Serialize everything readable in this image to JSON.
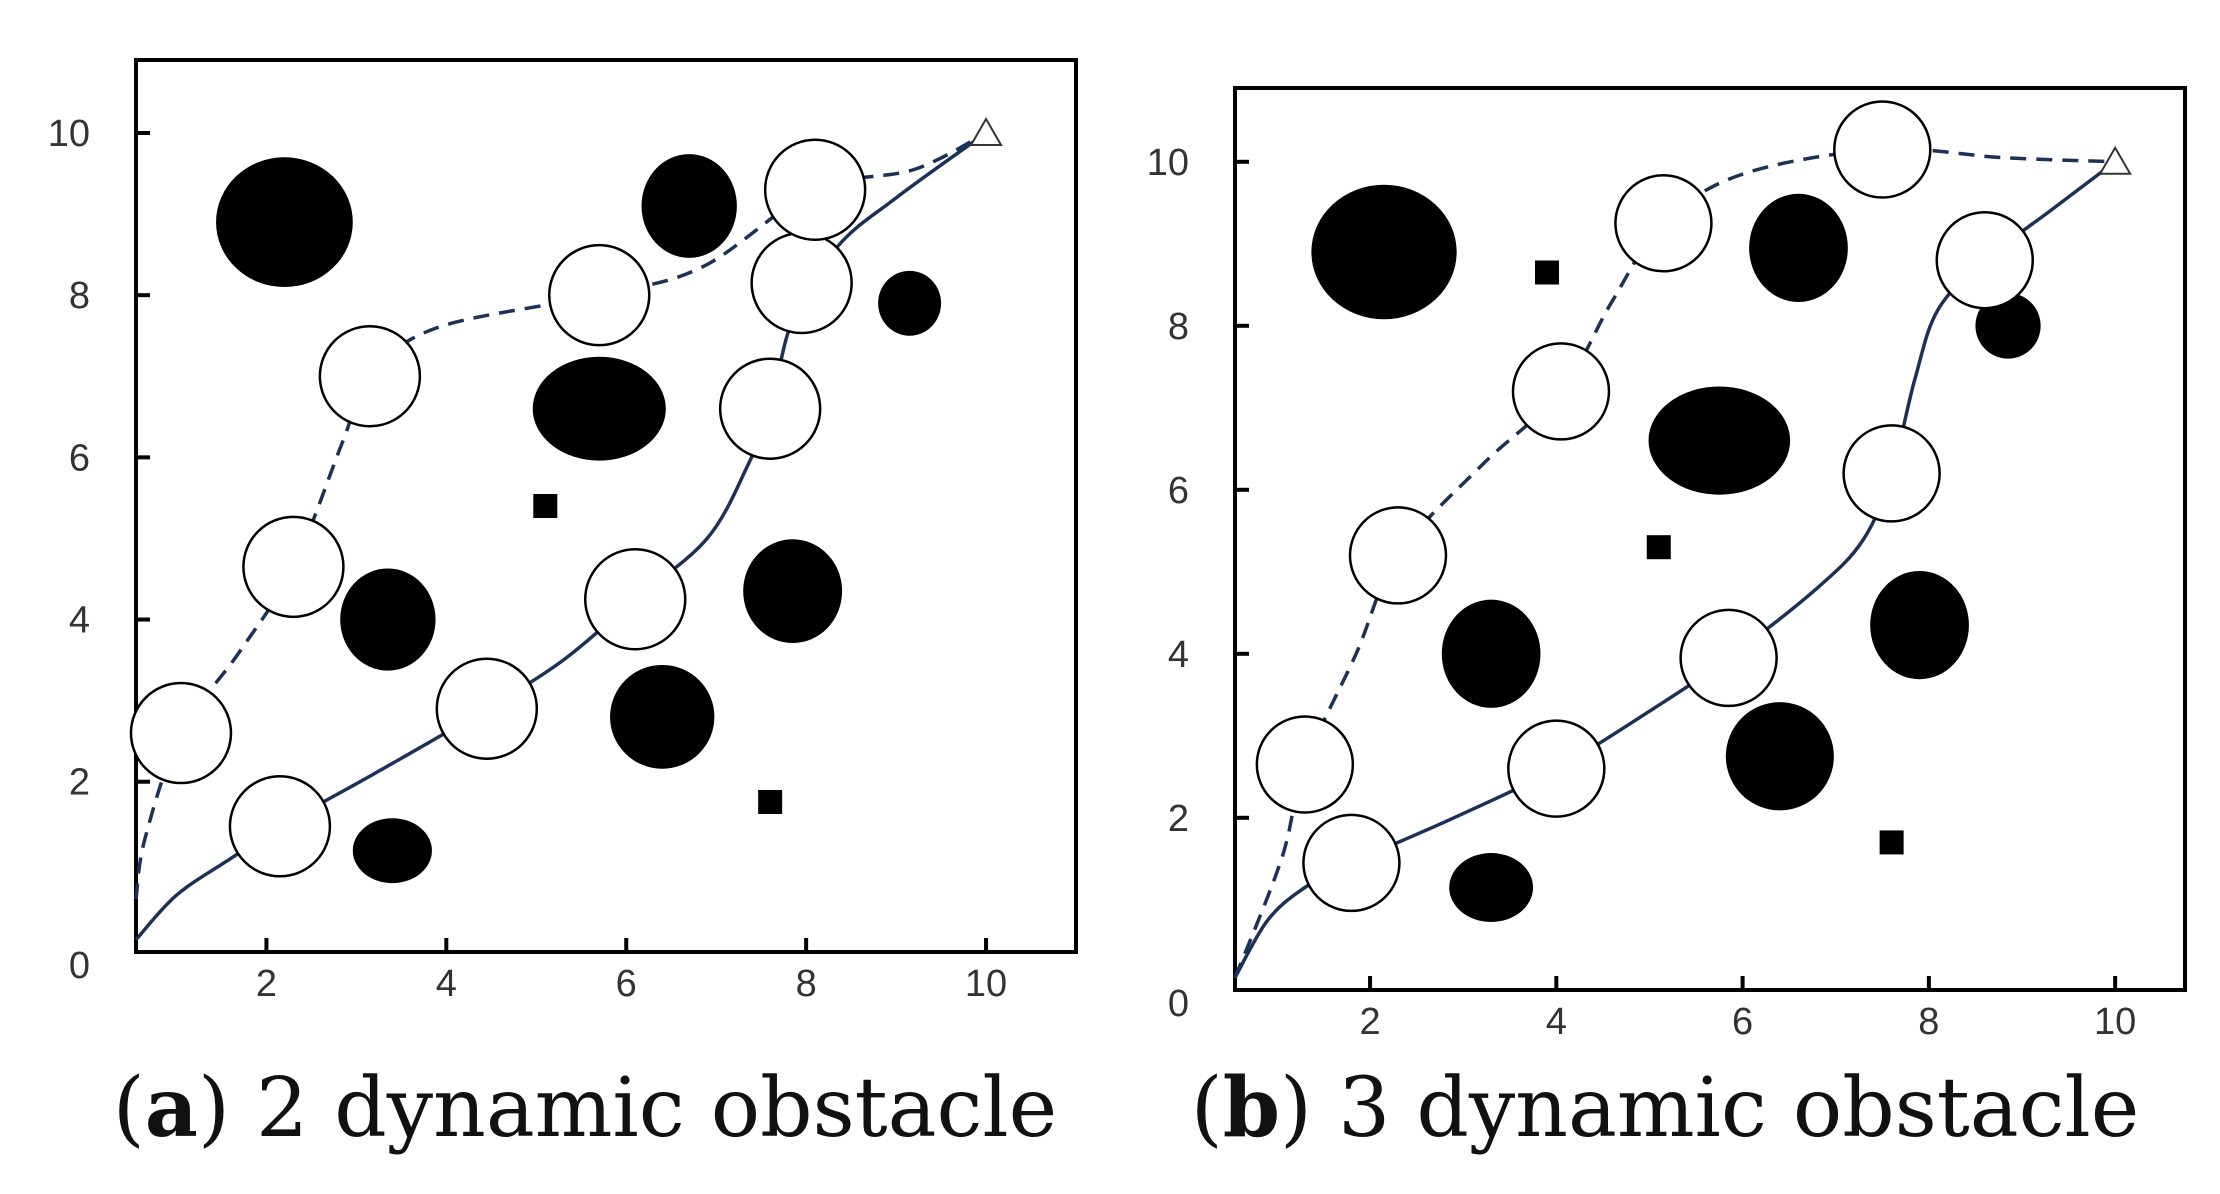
{
  "chart_data": [
    {
      "type": "scatter",
      "panel": "a",
      "caption": {
        "letter": "a",
        "text": " 2 dynamic obstacle"
      },
      "xlim": [
        0.55,
        11.0
      ],
      "ylim": [
        -0.1,
        10.9
      ],
      "xticks": [
        2,
        4,
        6,
        8,
        10
      ],
      "yticks": [
        0,
        2,
        4,
        6,
        8,
        10
      ],
      "goal": {
        "x": 10.0,
        "y": 10.0
      },
      "static_obstacles": [
        {
          "x": 2.2,
          "y": 8.9,
          "rx": 0.76,
          "ry": 0.8
        },
        {
          "x": 6.7,
          "y": 9.1,
          "rx": 0.53,
          "ry": 0.64
        },
        {
          "x": 9.15,
          "y": 7.9,
          "rx": 0.35,
          "ry": 0.4
        },
        {
          "x": 5.7,
          "y": 6.6,
          "rx": 0.74,
          "ry": 0.64
        },
        {
          "x": 3.35,
          "y": 4.0,
          "rx": 0.53,
          "ry": 0.63
        },
        {
          "x": 7.85,
          "y": 4.35,
          "rx": 0.55,
          "ry": 0.64
        },
        {
          "x": 6.4,
          "y": 2.8,
          "rx": 0.58,
          "ry": 0.64
        },
        {
          "x": 3.4,
          "y": 1.15,
          "rx": 0.44,
          "ry": 0.4
        }
      ],
      "dynamic_obstacles": [
        {
          "x": 5.1,
          "y": 5.4
        },
        {
          "x": 7.6,
          "y": 1.75
        }
      ],
      "circles": [
        {
          "x": 1.05,
          "y": 2.6
        },
        {
          "x": 2.15,
          "y": 1.45
        },
        {
          "x": 2.3,
          "y": 4.65
        },
        {
          "x": 3.15,
          "y": 7.0
        },
        {
          "x": 4.45,
          "y": 2.9
        },
        {
          "x": 6.1,
          "y": 4.25
        },
        {
          "x": 5.7,
          "y": 8.0
        },
        {
          "x": 7.6,
          "y": 6.6
        },
        {
          "x": 7.95,
          "y": 8.15
        },
        {
          "x": 8.1,
          "y": 9.3
        }
      ],
      "series": [
        {
          "name": "path-solid",
          "style": "solid",
          "points": [
            [
              0.55,
              0.05
            ],
            [
              1.0,
              0.6
            ],
            [
              1.6,
              1.05
            ],
            [
              2.15,
              1.45
            ],
            [
              3.2,
              2.1
            ],
            [
              4.45,
              2.9
            ],
            [
              5.3,
              3.5
            ],
            [
              6.1,
              4.25
            ],
            [
              6.9,
              5.0
            ],
            [
              7.35,
              5.9
            ],
            [
              7.6,
              6.6
            ],
            [
              7.85,
              7.7
            ],
            [
              8.35,
              8.6
            ],
            [
              9.0,
              9.2
            ],
            [
              10.0,
              10.0
            ]
          ]
        },
        {
          "name": "path-dashed",
          "style": "dashed",
          "points": [
            [
              0.55,
              0.55
            ],
            [
              0.65,
              1.3
            ],
            [
              1.05,
              2.6
            ],
            [
              1.7,
              3.6
            ],
            [
              2.3,
              4.65
            ],
            [
              2.85,
              6.2
            ],
            [
              3.15,
              7.0
            ],
            [
              3.9,
              7.6
            ],
            [
              5.7,
              8.0
            ],
            [
              6.85,
              8.35
            ],
            [
              8.1,
              9.3
            ],
            [
              9.2,
              9.55
            ],
            [
              10.0,
              10.0
            ]
          ]
        }
      ]
    },
    {
      "type": "scatter",
      "panel": "b",
      "caption": {
        "letter": "b",
        "text": " 3 dynamic obstacle"
      },
      "xlim": [
        0.55,
        10.75
      ],
      "ylim": [
        -0.1,
        10.9
      ],
      "xticks": [
        2,
        4,
        6,
        8,
        10
      ],
      "yticks": [
        0,
        2,
        4,
        6,
        8,
        10
      ],
      "goal": {
        "x": 10.0,
        "y": 10.0
      },
      "static_obstacles": [
        {
          "x": 2.15,
          "y": 8.9,
          "rx": 0.78,
          "ry": 0.82
        },
        {
          "x": 6.6,
          "y": 8.95,
          "rx": 0.53,
          "ry": 0.66
        },
        {
          "x": 8.85,
          "y": 8.0,
          "rx": 0.35,
          "ry": 0.4
        },
        {
          "x": 5.75,
          "y": 6.6,
          "rx": 0.76,
          "ry": 0.66
        },
        {
          "x": 3.3,
          "y": 4.0,
          "rx": 0.53,
          "ry": 0.66
        },
        {
          "x": 7.9,
          "y": 4.35,
          "rx": 0.53,
          "ry": 0.66
        },
        {
          "x": 6.4,
          "y": 2.75,
          "rx": 0.58,
          "ry": 0.66
        },
        {
          "x": 3.3,
          "y": 1.15,
          "rx": 0.45,
          "ry": 0.42
        }
      ],
      "dynamic_obstacles": [
        {
          "x": 3.9,
          "y": 8.65
        },
        {
          "x": 5.1,
          "y": 5.3
        },
        {
          "x": 7.6,
          "y": 1.7
        }
      ],
      "circles": [
        {
          "x": 1.3,
          "y": 2.65
        },
        {
          "x": 1.8,
          "y": 1.45
        },
        {
          "x": 2.3,
          "y": 5.2
        },
        {
          "x": 4.0,
          "y": 2.6
        },
        {
          "x": 4.05,
          "y": 7.2
        },
        {
          "x": 5.15,
          "y": 9.25
        },
        {
          "x": 5.85,
          "y": 3.95
        },
        {
          "x": 7.6,
          "y": 6.2
        },
        {
          "x": 8.6,
          "y": 8.8
        },
        {
          "x": 7.5,
          "y": 10.15
        }
      ],
      "series": [
        {
          "name": "path-solid",
          "style": "solid",
          "points": [
            [
              0.55,
              0.05
            ],
            [
              0.9,
              0.75
            ],
            [
              1.3,
              1.15
            ],
            [
              1.8,
              1.45
            ],
            [
              2.9,
              2.0
            ],
            [
              4.0,
              2.6
            ],
            [
              5.0,
              3.3
            ],
            [
              5.85,
              3.95
            ],
            [
              6.8,
              4.8
            ],
            [
              7.3,
              5.4
            ],
            [
              7.6,
              6.2
            ],
            [
              7.85,
              7.35
            ],
            [
              8.1,
              8.2
            ],
            [
              8.6,
              8.8
            ],
            [
              9.3,
              9.4
            ],
            [
              10.0,
              10.0
            ]
          ]
        },
        {
          "name": "path-dashed",
          "style": "dashed",
          "points": [
            [
              0.55,
              0.05
            ],
            [
              1.05,
              1.5
            ],
            [
              1.3,
              2.65
            ],
            [
              1.85,
              4.0
            ],
            [
              2.3,
              5.2
            ],
            [
              3.2,
              6.3
            ],
            [
              4.05,
              7.2
            ],
            [
              4.6,
              8.3
            ],
            [
              5.15,
              9.25
            ],
            [
              6.0,
              9.85
            ],
            [
              7.5,
              10.15
            ],
            [
              8.8,
              10.05
            ],
            [
              10.0,
              10.0
            ]
          ]
        }
      ]
    }
  ]
}
